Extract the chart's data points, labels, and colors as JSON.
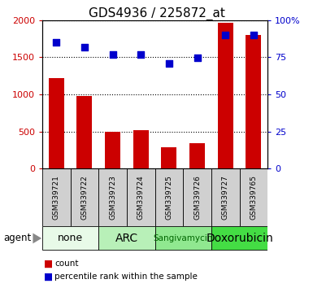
{
  "title": "GDS4936 / 225872_at",
  "samples": [
    "GSM339721",
    "GSM339722",
    "GSM339723",
    "GSM339724",
    "GSM339725",
    "GSM339726",
    "GSM339727",
    "GSM339765"
  ],
  "counts": [
    1220,
    975,
    500,
    520,
    285,
    340,
    1970,
    1800
  ],
  "percentile_ranks": [
    85,
    82,
    77,
    77,
    71,
    74.5,
    90,
    90
  ],
  "agents": [
    {
      "label": "none",
      "start": 0,
      "end": 2,
      "color": "#e8fae8"
    },
    {
      "label": "ARC",
      "start": 2,
      "end": 4,
      "color": "#b8f0b8"
    },
    {
      "label": "Sangivamycin",
      "start": 4,
      "end": 6,
      "color": "#90e890"
    },
    {
      "label": "Doxorubicin",
      "start": 6,
      "end": 8,
      "color": "#44dd44"
    }
  ],
  "agent_label_colors": [
    "#000000",
    "#000000",
    "#006600",
    "#000000"
  ],
  "agent_font_sizes": [
    9,
    10,
    7.5,
    10
  ],
  "ylim_left": [
    0,
    2000
  ],
  "ylim_right": [
    0,
    100
  ],
  "yticks_left": [
    0,
    500,
    1000,
    1500,
    2000
  ],
  "ytick_labels_left": [
    "0",
    "500",
    "1000",
    "1500",
    "2000"
  ],
  "yticks_right": [
    0,
    25,
    50,
    75,
    100
  ],
  "ytick_labels_right": [
    "0",
    "25",
    "50",
    "75",
    "100%"
  ],
  "bar_color": "#cc0000",
  "scatter_color": "#0000cc",
  "bg_color": "#ffffff",
  "plot_bg_color": "#ffffff",
  "sample_box_color": "#d0d0d0",
  "title_fontsize": 11
}
